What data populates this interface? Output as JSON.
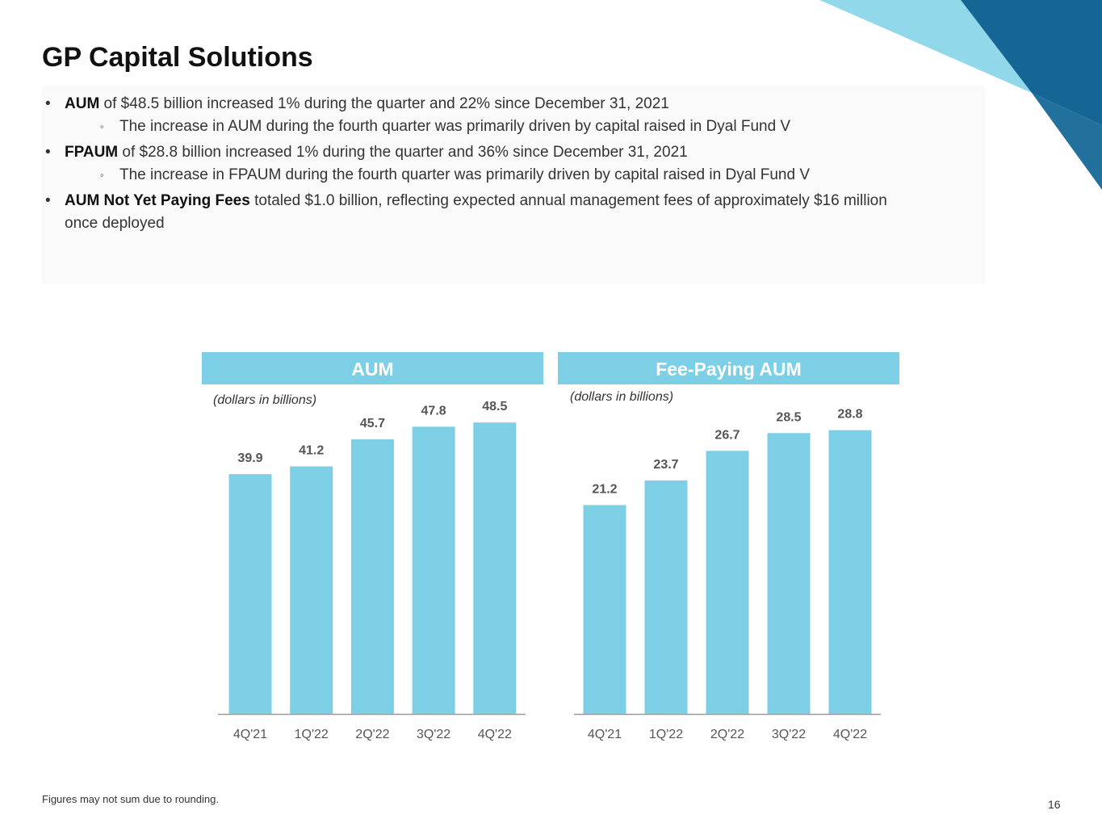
{
  "title": "GP Capital Solutions",
  "bullets": [
    {
      "bold": "AUM",
      "text": " of $48.5 billion increased 1% during the quarter and 22% since December 31, 2021",
      "sub": "The increase in AUM during the fourth quarter was primarily driven by capital raised in Dyal Fund V"
    },
    {
      "bold": "FPAUM",
      "text": " of $28.8 billion increased 1% during the quarter and 36% since December 31, 2021",
      "sub": "The increase in FPAUM during the fourth quarter was primarily driven by capital raised in Dyal Fund V"
    },
    {
      "bold": "AUM Not Yet Paying Fees",
      "text": " totaled $1.0 billion, reflecting expected annual management fees of approximately $16 million",
      "text2": "once deployed"
    }
  ],
  "colors": {
    "bar": "#7ccfe5",
    "dark_blue": "#156595",
    "light_blue": "#91d8ea"
  },
  "chart_data": [
    {
      "type": "bar",
      "title": "AUM",
      "subtitle": "(dollars in billions)",
      "categories": [
        "4Q'21",
        "1Q'22",
        "2Q'22",
        "3Q'22",
        "4Q'22"
      ],
      "values": [
        39.9,
        41.2,
        45.7,
        47.8,
        48.5
      ],
      "labels": [
        "39.9",
        "41.2",
        "45.7",
        "47.8",
        "48.5"
      ],
      "ylim": [
        0,
        48.5
      ],
      "grid": false
    },
    {
      "type": "bar",
      "title": "Fee-Paying AUM",
      "subtitle": "(dollars in billions)",
      "categories": [
        "4Q'21",
        "1Q'22",
        "2Q'22",
        "3Q'22",
        "4Q'22"
      ],
      "values": [
        21.2,
        23.7,
        26.7,
        28.5,
        28.8
      ],
      "labels": [
        "21.2",
        "23.7",
        "26.7",
        "28.5",
        "28.8"
      ],
      "ylim": [
        0,
        28.8
      ],
      "grid": false
    }
  ],
  "footnote": "Figures may not sum due to rounding.",
  "page_number": "16"
}
